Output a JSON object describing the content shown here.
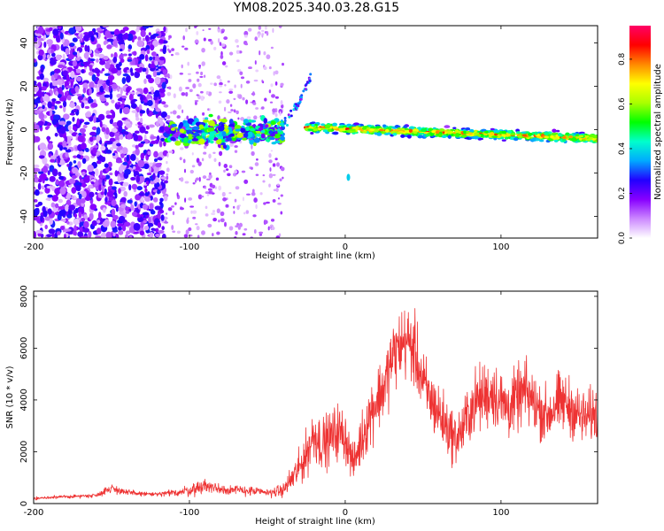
{
  "title": "YM08.2025.340.03.28.G15",
  "colors": {
    "snr_line": "#ee3333",
    "axis": "#000000",
    "colormap": [
      "#ffffff",
      "#cc88ff",
      "#8800ff",
      "#2200ff",
      "#00aaff",
      "#00ffcc",
      "#00ff00",
      "#aaff00",
      "#ffff00",
      "#ff8800",
      "#ff0000",
      "#ff0066"
    ]
  },
  "chart_data": [
    {
      "type": "heatmap",
      "title": "",
      "xlabel": "Height of straight line (km)",
      "ylabel": "Frequency (Hz)",
      "xlim": [
        -200,
        162
      ],
      "ylim": [
        -50,
        48
      ],
      "xticks": [
        -200,
        -100,
        0,
        100
      ],
      "yticks": [
        -40,
        -20,
        0,
        20,
        40
      ],
      "x_tick_labels": [
        "-200",
        "-100",
        "0",
        "100"
      ],
      "y_tick_labels": [
        "-40",
        "-20",
        "0",
        "20",
        "40"
      ],
      "colorbar": {
        "label": "Normalized spectral amplitude",
        "range": [
          0,
          0.95
        ],
        "ticks": [
          0.0,
          0.2,
          0.4,
          0.6,
          0.8
        ],
        "tick_labels": [
          "0.0",
          "0.2",
          "0.4",
          "0.6",
          "0.8"
        ]
      },
      "features": [
        {
          "name": "diffuse noise",
          "x_range": [
            -200,
            -115
          ],
          "freq_range": [
            -50,
            48
          ],
          "amplitude": 0.18
        },
        {
          "name": "sparse noise",
          "x_range": [
            -115,
            -40
          ],
          "freq_range": [
            -50,
            48
          ],
          "amplitude": 0.08
        },
        {
          "name": "onset cluster",
          "x_range": [
            -115,
            -40
          ],
          "freq_center": -1,
          "amplitude": 0.45
        },
        {
          "name": "rising arc",
          "x_range": [
            -45,
            -22
          ],
          "freq_range": [
            0,
            25
          ],
          "amplitude": 0.3
        },
        {
          "name": "carrier band",
          "x_range": [
            -25,
            162
          ],
          "freq_start": 1,
          "freq_end": -4,
          "amplitude": 0.85
        },
        {
          "name": "spur",
          "x": 2,
          "freq": -22,
          "amplitude": 0.4
        }
      ]
    },
    {
      "type": "line",
      "title": "",
      "xlabel": "Height of straight line (km)",
      "ylabel": "SNR (10 * v/v)",
      "xlim": [
        -200,
        162
      ],
      "ylim": [
        0,
        8200
      ],
      "xticks": [
        -200,
        -100,
        0,
        100
      ],
      "yticks": [
        0,
        2000,
        4000,
        6000,
        8000
      ],
      "x_tick_labels": [
        "-200",
        "-100",
        "0",
        "100"
      ],
      "y_tick_labels": [
        "0",
        "2000",
        "4000",
        "6000",
        "8000"
      ],
      "series": [
        {
          "name": "SNR",
          "x": [
            -200,
            -180,
            -160,
            -150,
            -140,
            -130,
            -120,
            -110,
            -100,
            -90,
            -80,
            -70,
            -60,
            -50,
            -40,
            -35,
            -30,
            -25,
            -20,
            -15,
            -10,
            -5,
            0,
            5,
            10,
            15,
            20,
            25,
            30,
            35,
            40,
            45,
            50,
            55,
            60,
            65,
            70,
            75,
            80,
            85,
            90,
            95,
            100,
            105,
            110,
            115,
            120,
            125,
            130,
            135,
            140,
            145,
            150,
            155,
            160
          ],
          "values": [
            200,
            260,
            320,
            600,
            420,
            380,
            350,
            420,
            500,
            700,
            560,
            520,
            480,
            420,
            500,
            900,
            1300,
            1900,
            2700,
            2300,
            2500,
            2800,
            2600,
            1500,
            2400,
            3300,
            4000,
            4500,
            5600,
            6100,
            6300,
            5800,
            4600,
            4000,
            3500,
            3000,
            2500,
            2800,
            3600,
            4000,
            4200,
            4300,
            3900,
            3700,
            4000,
            4300,
            4000,
            3600,
            3400,
            3800,
            3900,
            3700,
            3400,
            3300,
            3500
          ],
          "noise": [
            60,
            60,
            80,
            180,
            120,
            90,
            90,
            160,
            220,
            300,
            220,
            200,
            180,
            160,
            240,
            500,
            700,
            900,
            1100,
            1000,
            1000,
            1100,
            1000,
            700,
            1000,
            1200,
            1300,
            1300,
            1400,
            1400,
            1400,
            1400,
            1300,
            1200,
            1200,
            1100,
            1000,
            1100,
            1200,
            1300,
            1300,
            1300,
            1300,
            1200,
            1200,
            1300,
            1200,
            1100,
            1100,
            1200,
            1200,
            1100,
            1100,
            1000,
            1100
          ]
        }
      ]
    }
  ]
}
